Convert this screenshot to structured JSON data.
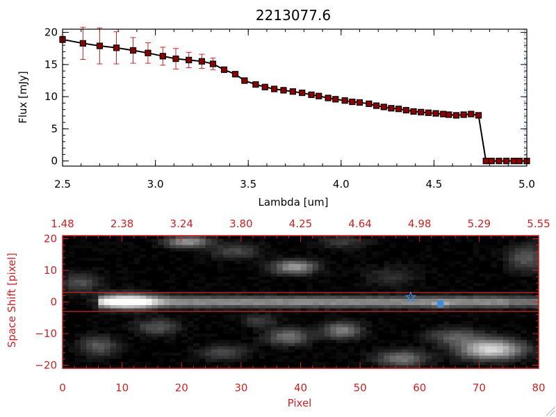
{
  "title": "2213077.6",
  "colors": {
    "axis_spectrum": "#000000",
    "axis_image": "#cc2222",
    "marker_fill": "#8b0000",
    "marker_edge": "#000000",
    "error_bar": "#cc2222",
    "line": "#000000",
    "star": "#3a8dde",
    "cutoff_line": "#3a8dde",
    "extraction_band": "#cc2222"
  },
  "chart_data": [
    {
      "type": "line",
      "name": "spectrum",
      "xlabel": "Lambda [um]",
      "ylabel": "Flux [mJy]",
      "xlim": [
        2.5,
        5.0
      ],
      "ylim": [
        -0.8,
        20.5
      ],
      "xticks": [
        2.5,
        3.0,
        3.5,
        4.0,
        4.5,
        5.0
      ],
      "xtick_labels": [
        "2.5",
        "3.0",
        "3.5",
        "4.0",
        "4.5",
        "5.0"
      ],
      "yticks": [
        0,
        5,
        10,
        15,
        20
      ],
      "ytick_labels": [
        "0",
        "5",
        "10",
        "15",
        "20"
      ],
      "cutoff_x": 5.0,
      "series": [
        {
          "name": "flux",
          "x": [
            2.5,
            2.61,
            2.7,
            2.79,
            2.88,
            2.96,
            3.04,
            3.11,
            3.18,
            3.25,
            3.31,
            3.37,
            3.43,
            3.48,
            3.54,
            3.59,
            3.64,
            3.69,
            3.74,
            3.79,
            3.84,
            3.88,
            3.93,
            3.97,
            4.02,
            4.06,
            4.1,
            4.15,
            4.19,
            4.23,
            4.27,
            4.31,
            4.35,
            4.39,
            4.43,
            4.47,
            4.51,
            4.55,
            4.58,
            4.62,
            4.66,
            4.7,
            4.74,
            4.78,
            4.81,
            4.85,
            4.89,
            4.93,
            4.96,
            5.0
          ],
          "y": [
            18.9,
            18.3,
            17.9,
            17.6,
            17.2,
            16.8,
            16.3,
            15.9,
            15.7,
            15.5,
            15.1,
            14.2,
            13.5,
            12.5,
            11.9,
            11.5,
            11.2,
            11.0,
            10.8,
            10.6,
            10.3,
            10.1,
            9.8,
            9.6,
            9.4,
            9.2,
            9.1,
            8.9,
            8.6,
            8.4,
            8.2,
            8.1,
            7.9,
            7.7,
            7.6,
            7.5,
            7.4,
            7.3,
            7.2,
            7.1,
            7.2,
            7.3,
            7.1,
            0.0,
            0.0,
            0.0,
            0.0,
            0.0,
            0.0,
            0.0
          ],
          "yerr": [
            0.5,
            2.5,
            2.8,
            2.5,
            2.0,
            1.6,
            1.4,
            1.6,
            1.2,
            1.1,
            0.9,
            0.3,
            0.3,
            0.2,
            0.2,
            0.2,
            0.2,
            0.2,
            0.2,
            0.2,
            0.2,
            0.2,
            0.2,
            0.2,
            0.2,
            0.2,
            0.2,
            0.2,
            0.2,
            0.2,
            0.2,
            0.2,
            0.2,
            0.2,
            0.2,
            0.2,
            0.2,
            0.2,
            0.2,
            0.2,
            0.2,
            0.2,
            0.3,
            0.0,
            0.0,
            0.0,
            0.0,
            0.0,
            0.0,
            0.0
          ]
        }
      ]
    },
    {
      "type": "heatmap",
      "name": "2d-spectrum-image",
      "xlabel": "Pixel",
      "ylabel": "Space Shift [pixel]",
      "xlim": [
        0,
        80
      ],
      "ylim": [
        -21,
        21
      ],
      "xticks": [
        0,
        10,
        20,
        30,
        40,
        50,
        60,
        70,
        80
      ],
      "xtick_labels": [
        "0",
        "10",
        "20",
        "30",
        "40",
        "50",
        "60",
        "70",
        "80"
      ],
      "yticks": [
        -20,
        -10,
        0,
        10,
        20
      ],
      "ytick_labels": [
        "−20",
        "−10",
        "0",
        "10",
        "20"
      ],
      "top_ticks": [
        0,
        10,
        20,
        30,
        40,
        50,
        60,
        70,
        80
      ],
      "top_tick_labels": [
        "1.48",
        "2.38",
        "3.24",
        "3.80",
        "4.25",
        "4.64",
        "4.98",
        "5.29",
        "5.55"
      ],
      "extraction_rows": [
        3,
        -3
      ],
      "grid_cols": 80,
      "grid_rows": 42,
      "trace": {
        "x_start": 6,
        "x_end": 80,
        "y": 0,
        "core_x": 11,
        "core_intensity": 1.0,
        "tail_intensity": 0.52,
        "width": 1.7
      },
      "blobs": [
        {
          "x": 11,
          "y": 0.3,
          "sx": 4.5,
          "sy": 2.6,
          "a": 0.45
        },
        {
          "x": 63.5,
          "y": -0.8,
          "sx": 1.2,
          "sy": 1.0,
          "a": 0.28
        },
        {
          "x": 21,
          "y": 19,
          "sx": 3.5,
          "sy": 1.8,
          "a": 0.55
        },
        {
          "x": 39,
          "y": 11,
          "sx": 3.5,
          "sy": 2.2,
          "a": 0.55
        },
        {
          "x": 29,
          "y": 16,
          "sx": 4.0,
          "sy": 2.5,
          "a": 0.22
        },
        {
          "x": 47,
          "y": 19,
          "sx": 4.0,
          "sy": 2.0,
          "a": 0.18
        },
        {
          "x": 78,
          "y": 14,
          "sx": 3.0,
          "sy": 4.0,
          "a": 0.3
        },
        {
          "x": 3,
          "y": 6,
          "sx": 3.0,
          "sy": 3.0,
          "a": 0.25
        },
        {
          "x": 38,
          "y": -11,
          "sx": 3.5,
          "sy": 2.5,
          "a": 0.4
        },
        {
          "x": 47,
          "y": -9,
          "sx": 3.0,
          "sy": 2.5,
          "a": 0.45
        },
        {
          "x": 57,
          "y": -18,
          "sx": 4.0,
          "sy": 2.5,
          "a": 0.4
        },
        {
          "x": 72,
          "y": -15,
          "sx": 5.0,
          "sy": 3.0,
          "a": 0.85
        },
        {
          "x": 66,
          "y": -11,
          "sx": 4.5,
          "sy": 2.5,
          "a": 0.3
        },
        {
          "x": 16,
          "y": -8,
          "sx": 3.5,
          "sy": 2.5,
          "a": 0.28
        },
        {
          "x": 27,
          "y": -16,
          "sx": 4.0,
          "sy": 2.5,
          "a": 0.22
        },
        {
          "x": 6,
          "y": -14,
          "sx": 3.0,
          "sy": 3.0,
          "a": 0.3
        },
        {
          "x": 33,
          "y": -6,
          "sx": 3.0,
          "sy": 2.0,
          "a": 0.18
        },
        {
          "x": 55,
          "y": 8,
          "sx": 4.0,
          "sy": 3.0,
          "a": 0.14
        }
      ],
      "markers": [
        {
          "name": "source-star",
          "shape": "star",
          "x": 58.5,
          "y": 1.5
        },
        {
          "name": "source-square",
          "shape": "square",
          "x": 63.5,
          "y": -0.5
        }
      ]
    }
  ]
}
